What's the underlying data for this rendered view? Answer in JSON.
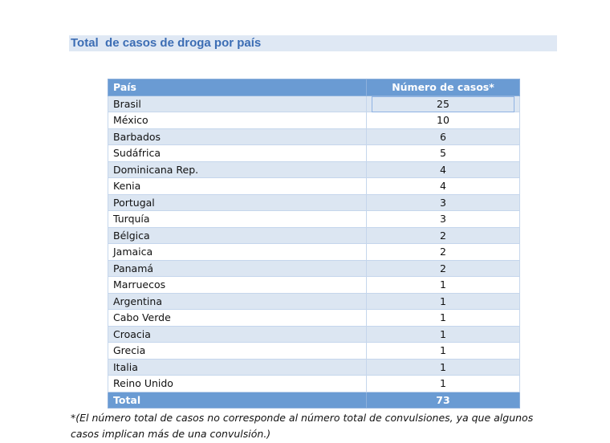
{
  "title": "Total  de casos de droga por país",
  "table": {
    "headers": [
      "País",
      "Número de casos*"
    ],
    "rows": [
      [
        "Brasil",
        "25"
      ],
      [
        "México",
        "10"
      ],
      [
        "Barbados",
        "6"
      ],
      [
        "Sudáfrica",
        "5"
      ],
      [
        "Dominicana Rep.",
        "4"
      ],
      [
        "Kenia",
        "4"
      ],
      [
        "Portugal",
        "3"
      ],
      [
        "Turquía",
        "3"
      ],
      [
        "Bélgica",
        "2"
      ],
      [
        "Jamaica",
        "2"
      ],
      [
        "Panamá",
        "2"
      ],
      [
        "Marruecos",
        "1"
      ],
      [
        "Argentina",
        "1"
      ],
      [
        "Cabo Verde",
        "1"
      ],
      [
        "Croacia",
        "1"
      ],
      [
        "Grecia",
        "1"
      ],
      [
        "Italia",
        "1"
      ],
      [
        "Reino Unido",
        "1"
      ]
    ],
    "total": [
      "Total",
      "73"
    ]
  },
  "note": "*(El número total de casos no corresponde al número total de convulsiones, ya que algunos casos implican más de una convulsión.)",
  "colors": {
    "header": "#6a9bd3",
    "band": "#dce6f2",
    "title": "#3c6db4"
  }
}
